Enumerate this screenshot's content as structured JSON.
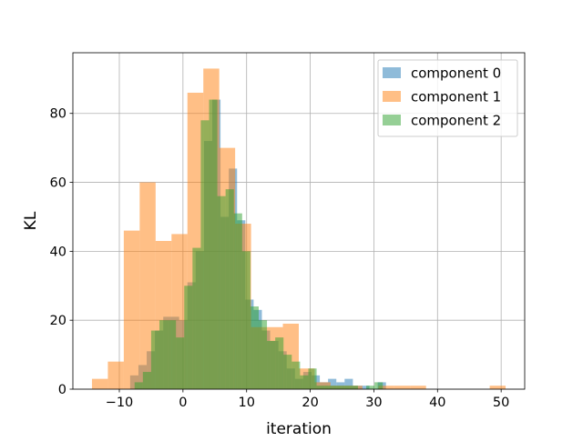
{
  "chart_data": {
    "type": "histogram",
    "xlabel": "iteration",
    "ylabel": "KL",
    "xlim": [
      -17.3,
      53.7
    ],
    "ylim": [
      0,
      97.6
    ],
    "xticks": [
      -10,
      0,
      10,
      20,
      30,
      40,
      50
    ],
    "yticks": [
      0,
      20,
      40,
      60,
      80
    ],
    "grid": true,
    "legend_position": "top-right",
    "bar_alpha": 0.5,
    "series": [
      {
        "name": "component 0",
        "color": "#1f77b4",
        "bins": [
          [
            -8.3,
            -7.0,
            4
          ],
          [
            -7.0,
            -5.7,
            7
          ],
          [
            -5.7,
            -4.4,
            11
          ],
          [
            -4.4,
            -3.1,
            17
          ],
          [
            -3.1,
            -1.9,
            21
          ],
          [
            -1.9,
            -0.6,
            21
          ],
          [
            -0.6,
            0.7,
            20
          ],
          [
            0.7,
            2.0,
            31
          ],
          [
            2.0,
            3.3,
            40
          ],
          [
            3.3,
            4.6,
            72
          ],
          [
            4.6,
            5.9,
            84
          ],
          [
            5.9,
            7.2,
            50
          ],
          [
            7.2,
            8.5,
            64
          ],
          [
            8.5,
            9.8,
            49
          ],
          [
            9.8,
            11.1,
            26
          ],
          [
            11.1,
            12.4,
            23
          ],
          [
            12.4,
            13.7,
            17
          ],
          [
            13.7,
            15.0,
            14
          ],
          [
            15.0,
            16.3,
            11
          ],
          [
            16.3,
            17.6,
            6
          ],
          [
            17.6,
            18.9,
            3
          ],
          [
            18.9,
            20.2,
            5
          ],
          [
            20.2,
            21.5,
            4
          ],
          [
            21.5,
            22.8,
            2
          ],
          [
            22.8,
            24.1,
            3
          ],
          [
            24.1,
            25.4,
            2
          ],
          [
            25.4,
            26.7,
            3
          ],
          [
            26.7,
            28.0,
            1
          ],
          [
            28.0,
            29.3,
            1
          ],
          [
            29.3,
            30.6,
            0
          ],
          [
            30.6,
            31.9,
            2
          ]
        ]
      },
      {
        "name": "component 1",
        "color": "#ff7f0e",
        "bins": [
          [
            -14.3,
            -11.8,
            3
          ],
          [
            -11.8,
            -9.3,
            8
          ],
          [
            -9.3,
            -6.8,
            46
          ],
          [
            -6.8,
            -4.3,
            60
          ],
          [
            -4.3,
            -1.8,
            43
          ],
          [
            -1.8,
            0.7,
            45
          ],
          [
            0.7,
            3.2,
            86
          ],
          [
            3.2,
            5.7,
            93
          ],
          [
            5.7,
            8.2,
            70
          ],
          [
            8.2,
            10.7,
            48
          ],
          [
            10.7,
            13.2,
            18
          ],
          [
            13.2,
            15.7,
            18
          ],
          [
            15.7,
            18.2,
            19
          ],
          [
            18.2,
            20.7,
            6
          ],
          [
            20.7,
            23.2,
            2
          ],
          [
            23.2,
            25.7,
            1
          ],
          [
            25.7,
            28.2,
            1
          ],
          [
            28.2,
            30.7,
            0
          ],
          [
            30.7,
            33.2,
            1
          ],
          [
            33.2,
            35.7,
            1
          ],
          [
            35.7,
            38.2,
            1
          ],
          [
            38.2,
            40.7,
            0
          ],
          [
            40.7,
            43.2,
            0
          ],
          [
            43.2,
            45.7,
            0
          ],
          [
            45.7,
            48.2,
            0
          ],
          [
            48.2,
            50.7,
            1
          ]
        ]
      },
      {
        "name": "component 2",
        "color": "#2ca02c",
        "bins": [
          [
            -7.6,
            -6.3,
            2
          ],
          [
            -6.3,
            -5.0,
            5
          ],
          [
            -5.0,
            -3.7,
            17
          ],
          [
            -3.7,
            -2.4,
            20
          ],
          [
            -2.4,
            -1.1,
            20
          ],
          [
            -1.1,
            0.2,
            15
          ],
          [
            0.2,
            1.5,
            30
          ],
          [
            1.5,
            2.8,
            41
          ],
          [
            2.8,
            4.1,
            78
          ],
          [
            4.1,
            5.4,
            84
          ],
          [
            5.4,
            6.7,
            56
          ],
          [
            6.7,
            8.0,
            58
          ],
          [
            8.0,
            9.3,
            51
          ],
          [
            9.3,
            10.6,
            40
          ],
          [
            10.6,
            11.9,
            24
          ],
          [
            11.9,
            13.2,
            20
          ],
          [
            13.2,
            14.5,
            14
          ],
          [
            14.5,
            15.8,
            15
          ],
          [
            15.8,
            17.1,
            10
          ],
          [
            17.1,
            18.4,
            8
          ],
          [
            18.4,
            19.7,
            4
          ],
          [
            19.7,
            21.0,
            6
          ],
          [
            21.0,
            22.3,
            1
          ],
          [
            22.3,
            23.6,
            1
          ],
          [
            23.6,
            24.9,
            1
          ],
          [
            24.9,
            26.2,
            1
          ],
          [
            26.2,
            27.5,
            1
          ],
          [
            27.5,
            28.8,
            0
          ],
          [
            28.8,
            30.1,
            1
          ],
          [
            30.1,
            31.4,
            2
          ]
        ]
      }
    ]
  }
}
